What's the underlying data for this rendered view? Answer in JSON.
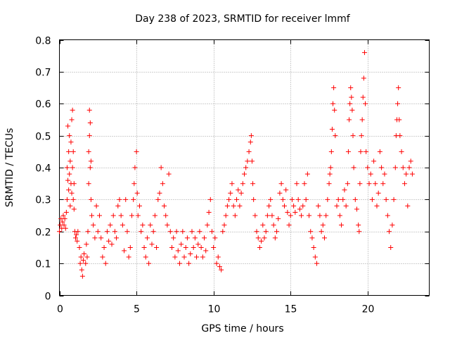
{
  "chart_data": {
    "type": "scatter",
    "title": "Day 238 of 2023, SRMTID for receiver lmmf",
    "xlabel": "GPS time / hours",
    "ylabel": "SRMTID / TECUs",
    "xlim": [
      0,
      24
    ],
    "ylim": [
      0,
      0.8
    ],
    "xticks": [
      0,
      5,
      10,
      15,
      20
    ],
    "yticks": [
      0,
      0.1,
      0.2,
      0.3,
      0.4,
      0.5,
      0.6,
      0.7,
      0.8
    ],
    "grid": true,
    "marker": "plus",
    "color": "#ff0000",
    "series": [
      {
        "name": "lmmf",
        "points": [
          [
            0.0,
            0.2
          ],
          [
            0.05,
            0.22
          ],
          [
            0.1,
            0.24
          ],
          [
            0.15,
            0.21
          ],
          [
            0.2,
            0.23
          ],
          [
            0.25,
            0.25
          ],
          [
            0.3,
            0.22
          ],
          [
            0.35,
            0.24
          ],
          [
            0.4,
            0.21
          ],
          [
            0.45,
            0.26
          ],
          [
            0.5,
            0.3
          ],
          [
            0.5,
            0.4
          ],
          [
            0.55,
            0.53
          ],
          [
            0.55,
            0.36
          ],
          [
            0.6,
            0.45
          ],
          [
            0.6,
            0.33
          ],
          [
            0.65,
            0.5
          ],
          [
            0.65,
            0.38
          ],
          [
            0.7,
            0.42
          ],
          [
            0.7,
            0.28
          ],
          [
            0.75,
            0.48
          ],
          [
            0.75,
            0.35
          ],
          [
            0.8,
            0.55
          ],
          [
            0.8,
            0.32
          ],
          [
            0.85,
            0.58
          ],
          [
            0.85,
            0.4
          ],
          [
            0.9,
            0.45
          ],
          [
            0.9,
            0.3
          ],
          [
            0.95,
            0.35
          ],
          [
            0.95,
            0.27
          ],
          [
            1.0,
            0.2
          ],
          [
            1.05,
            0.18
          ],
          [
            1.1,
            0.19
          ],
          [
            1.15,
            0.17
          ],
          [
            1.2,
            0.2
          ],
          [
            1.3,
            0.15
          ],
          [
            1.35,
            0.1
          ],
          [
            1.4,
            0.12
          ],
          [
            1.45,
            0.08
          ],
          [
            1.5,
            0.06
          ],
          [
            1.55,
            0.11
          ],
          [
            1.6,
            0.13
          ],
          [
            1.7,
            0.1
          ],
          [
            1.75,
            0.16
          ],
          [
            1.8,
            0.12
          ],
          [
            1.85,
            0.2
          ],
          [
            1.9,
            0.35
          ],
          [
            1.9,
            0.45
          ],
          [
            1.95,
            0.5
          ],
          [
            1.95,
            0.58
          ],
          [
            2.0,
            0.4
          ],
          [
            2.0,
            0.54
          ],
          [
            2.05,
            0.42
          ],
          [
            2.05,
            0.3
          ],
          [
            2.1,
            0.25
          ],
          [
            2.2,
            0.22
          ],
          [
            2.3,
            0.18
          ],
          [
            2.4,
            0.28
          ],
          [
            2.5,
            0.2
          ],
          [
            2.6,
            0.25
          ],
          [
            2.7,
            0.18
          ],
          [
            2.8,
            0.12
          ],
          [
            2.9,
            0.15
          ],
          [
            3.0,
            0.1
          ],
          [
            3.1,
            0.2
          ],
          [
            3.2,
            0.17
          ],
          [
            3.3,
            0.22
          ],
          [
            3.4,
            0.16
          ],
          [
            3.5,
            0.25
          ],
          [
            3.6,
            0.2
          ],
          [
            3.7,
            0.18
          ],
          [
            3.8,
            0.28
          ],
          [
            3.9,
            0.3
          ],
          [
            4.0,
            0.25
          ],
          [
            4.1,
            0.22
          ],
          [
            4.2,
            0.14
          ],
          [
            4.3,
            0.3
          ],
          [
            4.4,
            0.2
          ],
          [
            4.5,
            0.12
          ],
          [
            4.6,
            0.15
          ],
          [
            4.7,
            0.25
          ],
          [
            4.8,
            0.3
          ],
          [
            4.85,
            0.35
          ],
          [
            4.9,
            0.4
          ],
          [
            5.0,
            0.45
          ],
          [
            5.05,
            0.32
          ],
          [
            5.1,
            0.25
          ],
          [
            5.2,
            0.28
          ],
          [
            5.3,
            0.2
          ],
          [
            5.4,
            0.22
          ],
          [
            5.5,
            0.15
          ],
          [
            5.6,
            0.12
          ],
          [
            5.7,
            0.18
          ],
          [
            5.8,
            0.1
          ],
          [
            5.9,
            0.22
          ],
          [
            6.0,
            0.16
          ],
          [
            6.1,
            0.2
          ],
          [
            6.2,
            0.25
          ],
          [
            6.3,
            0.15
          ],
          [
            6.4,
            0.3
          ],
          [
            6.5,
            0.32
          ],
          [
            6.6,
            0.4
          ],
          [
            6.7,
            0.35
          ],
          [
            6.8,
            0.28
          ],
          [
            6.9,
            0.25
          ],
          [
            7.0,
            0.22
          ],
          [
            7.1,
            0.38
          ],
          [
            7.2,
            0.2
          ],
          [
            7.3,
            0.15
          ],
          [
            7.4,
            0.18
          ],
          [
            7.5,
            0.12
          ],
          [
            7.6,
            0.2
          ],
          [
            7.7,
            0.14
          ],
          [
            7.8,
            0.1
          ],
          [
            7.9,
            0.16
          ],
          [
            8.0,
            0.2
          ],
          [
            8.1,
            0.12
          ],
          [
            8.2,
            0.15
          ],
          [
            8.3,
            0.18
          ],
          [
            8.4,
            0.1
          ],
          [
            8.5,
            0.13
          ],
          [
            8.6,
            0.2
          ],
          [
            8.7,
            0.15
          ],
          [
            8.8,
            0.18
          ],
          [
            8.9,
            0.12
          ],
          [
            9.0,
            0.16
          ],
          [
            9.1,
            0.2
          ],
          [
            9.2,
            0.15
          ],
          [
            9.3,
            0.12
          ],
          [
            9.4,
            0.18
          ],
          [
            9.5,
            0.14
          ],
          [
            9.6,
            0.22
          ],
          [
            9.7,
            0.26
          ],
          [
            9.8,
            0.3
          ],
          [
            9.9,
            0.2
          ],
          [
            10.0,
            0.15
          ],
          [
            10.1,
            0.18
          ],
          [
            10.2,
            0.1
          ],
          [
            10.3,
            0.12
          ],
          [
            10.4,
            0.09
          ],
          [
            10.5,
            0.08
          ],
          [
            10.6,
            0.2
          ],
          [
            10.7,
            0.22
          ],
          [
            10.8,
            0.25
          ],
          [
            10.9,
            0.28
          ],
          [
            11.0,
            0.3
          ],
          [
            11.1,
            0.32
          ],
          [
            11.2,
            0.35
          ],
          [
            11.3,
            0.28
          ],
          [
            11.4,
            0.25
          ],
          [
            11.5,
            0.3
          ],
          [
            11.6,
            0.33
          ],
          [
            11.7,
            0.28
          ],
          [
            11.8,
            0.32
          ],
          [
            11.9,
            0.35
          ],
          [
            12.0,
            0.38
          ],
          [
            12.1,
            0.4
          ],
          [
            12.2,
            0.42
          ],
          [
            12.3,
            0.45
          ],
          [
            12.4,
            0.48
          ],
          [
            12.45,
            0.5
          ],
          [
            12.5,
            0.42
          ],
          [
            12.55,
            0.35
          ],
          [
            12.6,
            0.3
          ],
          [
            12.7,
            0.25
          ],
          [
            12.8,
            0.2
          ],
          [
            12.9,
            0.18
          ],
          [
            13.0,
            0.15
          ],
          [
            13.1,
            0.17
          ],
          [
            13.2,
            0.22
          ],
          [
            13.3,
            0.18
          ],
          [
            13.4,
            0.2
          ],
          [
            13.5,
            0.25
          ],
          [
            13.6,
            0.28
          ],
          [
            13.7,
            0.3
          ],
          [
            13.8,
            0.25
          ],
          [
            13.9,
            0.22
          ],
          [
            14.0,
            0.18
          ],
          [
            14.1,
            0.2
          ],
          [
            14.2,
            0.24
          ],
          [
            14.3,
            0.32
          ],
          [
            14.4,
            0.35
          ],
          [
            14.5,
            0.3
          ],
          [
            14.6,
            0.28
          ],
          [
            14.7,
            0.33
          ],
          [
            14.8,
            0.26
          ],
          [
            14.9,
            0.22
          ],
          [
            15.0,
            0.25
          ],
          [
            15.1,
            0.3
          ],
          [
            15.2,
            0.28
          ],
          [
            15.3,
            0.26
          ],
          [
            15.4,
            0.35
          ],
          [
            15.5,
            0.3
          ],
          [
            15.6,
            0.27
          ],
          [
            15.7,
            0.25
          ],
          [
            15.8,
            0.28
          ],
          [
            15.9,
            0.35
          ],
          [
            16.0,
            0.3
          ],
          [
            16.1,
            0.38
          ],
          [
            16.2,
            0.25
          ],
          [
            16.3,
            0.2
          ],
          [
            16.4,
            0.18
          ],
          [
            16.5,
            0.15
          ],
          [
            16.6,
            0.12
          ],
          [
            16.7,
            0.1
          ],
          [
            16.8,
            0.28
          ],
          [
            16.9,
            0.25
          ],
          [
            17.0,
            0.2
          ],
          [
            17.1,
            0.22
          ],
          [
            17.2,
            0.18
          ],
          [
            17.3,
            0.25
          ],
          [
            17.4,
            0.3
          ],
          [
            17.5,
            0.35
          ],
          [
            17.55,
            0.38
          ],
          [
            17.6,
            0.4
          ],
          [
            17.65,
            0.45
          ],
          [
            17.7,
            0.52
          ],
          [
            17.75,
            0.6
          ],
          [
            17.8,
            0.65
          ],
          [
            17.85,
            0.58
          ],
          [
            17.9,
            0.5
          ],
          [
            18.0,
            0.28
          ],
          [
            18.1,
            0.3
          ],
          [
            18.2,
            0.25
          ],
          [
            18.3,
            0.22
          ],
          [
            18.4,
            0.3
          ],
          [
            18.5,
            0.33
          ],
          [
            18.6,
            0.28
          ],
          [
            18.7,
            0.35
          ],
          [
            18.75,
            0.45
          ],
          [
            18.8,
            0.55
          ],
          [
            18.85,
            0.6
          ],
          [
            18.9,
            0.65
          ],
          [
            18.95,
            0.62
          ],
          [
            19.0,
            0.58
          ],
          [
            19.05,
            0.5
          ],
          [
            19.1,
            0.4
          ],
          [
            19.2,
            0.3
          ],
          [
            19.3,
            0.27
          ],
          [
            19.4,
            0.22
          ],
          [
            19.45,
            0.2
          ],
          [
            19.5,
            0.35
          ],
          [
            19.55,
            0.45
          ],
          [
            19.6,
            0.5
          ],
          [
            19.65,
            0.55
          ],
          [
            19.7,
            0.62
          ],
          [
            19.75,
            0.68
          ],
          [
            19.8,
            0.76
          ],
          [
            19.85,
            0.6
          ],
          [
            19.9,
            0.45
          ],
          [
            20.0,
            0.4
          ],
          [
            20.1,
            0.35
          ],
          [
            20.2,
            0.38
          ],
          [
            20.3,
            0.3
          ],
          [
            20.4,
            0.42
          ],
          [
            20.5,
            0.35
          ],
          [
            20.6,
            0.28
          ],
          [
            20.7,
            0.32
          ],
          [
            20.8,
            0.45
          ],
          [
            20.9,
            0.4
          ],
          [
            21.0,
            0.35
          ],
          [
            21.1,
            0.38
          ],
          [
            21.2,
            0.3
          ],
          [
            21.3,
            0.25
          ],
          [
            21.4,
            0.2
          ],
          [
            21.5,
            0.15
          ],
          [
            21.6,
            0.22
          ],
          [
            21.7,
            0.3
          ],
          [
            21.8,
            0.4
          ],
          [
            21.85,
            0.5
          ],
          [
            21.9,
            0.55
          ],
          [
            21.95,
            0.6
          ],
          [
            22.0,
            0.65
          ],
          [
            22.05,
            0.55
          ],
          [
            22.1,
            0.5
          ],
          [
            22.2,
            0.45
          ],
          [
            22.3,
            0.4
          ],
          [
            22.4,
            0.35
          ],
          [
            22.5,
            0.38
          ],
          [
            22.6,
            0.28
          ],
          [
            22.7,
            0.4
          ],
          [
            22.8,
            0.42
          ],
          [
            22.9,
            0.38
          ]
        ]
      }
    ]
  }
}
